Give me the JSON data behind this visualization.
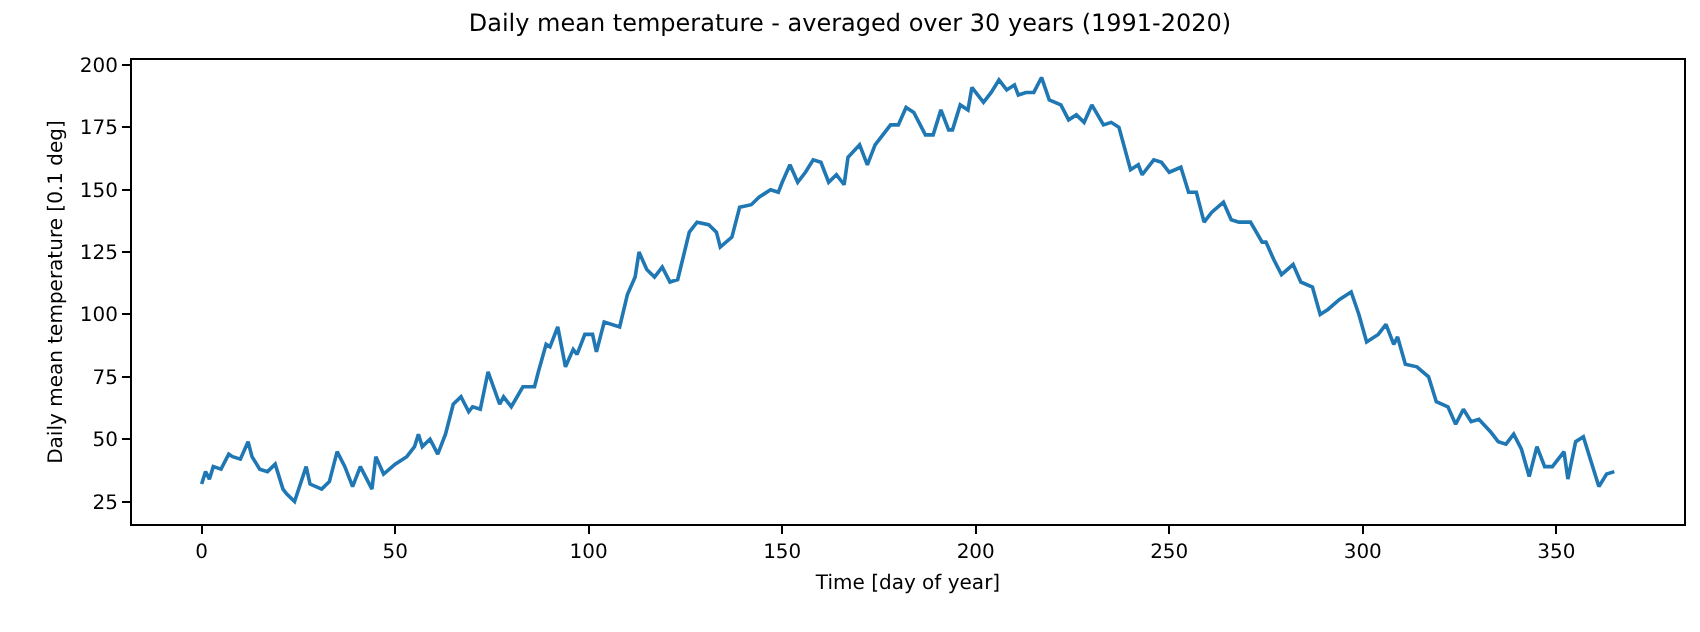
{
  "chart_data": {
    "type": "line",
    "title": "Daily mean temperature - averaged over 30 years (1991-2020)",
    "xlabel": "Time [day of year]",
    "ylabel": "Daily mean temperature [0.1 deg]",
    "x": [
      0,
      1,
      2,
      3,
      5,
      7,
      8,
      10,
      12,
      13,
      15,
      17,
      19,
      21,
      22,
      24,
      27,
      28,
      31,
      33,
      35,
      37,
      39,
      41,
      44,
      45,
      47,
      50,
      53,
      55,
      56,
      57,
      59,
      61,
      63,
      65,
      67,
      69,
      70,
      72,
      74,
      77,
      78,
      80,
      83,
      86,
      87,
      89,
      90,
      92,
      94,
      96,
      97,
      99,
      101,
      102,
      104,
      108,
      110,
      112,
      113,
      115,
      117,
      119,
      121,
      123,
      126,
      128,
      131,
      133,
      134,
      137,
      139,
      142,
      144,
      147,
      149,
      150,
      152,
      154,
      156,
      158,
      160,
      162,
      164,
      166,
      167,
      170,
      172,
      174,
      178,
      180,
      182,
      184,
      187,
      189,
      191,
      193,
      194,
      196,
      198,
      199,
      202,
      204,
      206,
      208,
      210,
      211,
      213,
      215,
      217,
      219,
      222,
      224,
      226,
      228,
      230,
      233,
      235,
      237,
      240,
      242,
      243,
      246,
      248,
      250,
      253,
      255,
      257,
      259,
      261,
      264,
      266,
      268,
      271,
      274,
      275,
      277,
      279,
      282,
      284,
      287,
      289,
      291,
      294,
      297,
      299,
      301,
      304,
      306,
      308,
      309,
      311,
      314,
      317,
      319,
      322,
      324,
      326,
      328,
      330,
      333,
      335,
      337,
      339,
      341,
      343,
      345,
      347,
      349,
      352,
      353,
      355,
      357,
      358,
      361,
      363,
      365
    ],
    "series": [
      {
        "color": "#1f77b4",
        "values": [
          32,
          37,
          34,
          39,
          38,
          44,
          43,
          42,
          49,
          43,
          38,
          37,
          40,
          30,
          28,
          25,
          39,
          32,
          30,
          33,
          45,
          39,
          31,
          39,
          30,
          43,
          36,
          40,
          43,
          47,
          52,
          47,
          50,
          44,
          52,
          64,
          67,
          61,
          63,
          62,
          77,
          64,
          67,
          63,
          71,
          71,
          77,
          88,
          87,
          95,
          79,
          86,
          84,
          92,
          92,
          85,
          97,
          95,
          108,
          115,
          125,
          118,
          115,
          119,
          113,
          114,
          133,
          137,
          136,
          133,
          127,
          131,
          143,
          144,
          147,
          150,
          149,
          153,
          160,
          153,
          157,
          162,
          161,
          153,
          156,
          152,
          163,
          168,
          160,
          168,
          176,
          176,
          183,
          181,
          172,
          172,
          182,
          174,
          174,
          184,
          182,
          191,
          185,
          189,
          194,
          190,
          192,
          188,
          189,
          189,
          195,
          186,
          184,
          178,
          180,
          177,
          184,
          176,
          177,
          175,
          158,
          160,
          156,
          162,
          161,
          157,
          159,
          149,
          149,
          137,
          141,
          145,
          138,
          137,
          137,
          129,
          129,
          122,
          116,
          120,
          113,
          111,
          100,
          102,
          106,
          109,
          100,
          89,
          92,
          96,
          88,
          91,
          80,
          79,
          75,
          65,
          63,
          56,
          62,
          57,
          58,
          53,
          49,
          48,
          52,
          46,
          35,
          47,
          39,
          39,
          45,
          34,
          49,
          51,
          46,
          31,
          36,
          37
        ]
      }
    ],
    "xlim": [
      -18,
      383
    ],
    "ylim": [
      16,
      202
    ],
    "xticks": [
      0,
      50,
      100,
      150,
      200,
      250,
      300,
      350
    ],
    "yticks": [
      25,
      50,
      75,
      100,
      125,
      150,
      175,
      200
    ],
    "grid": false,
    "marker": "none",
    "line_style": "solid"
  }
}
